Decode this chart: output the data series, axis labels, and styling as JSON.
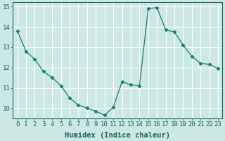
{
  "x": [
    0,
    1,
    2,
    3,
    4,
    5,
    6,
    7,
    8,
    9,
    10,
    11,
    12,
    13,
    14,
    15,
    16,
    17,
    18,
    19,
    20,
    21,
    22,
    23
  ],
  "y": [
    13.8,
    12.8,
    12.4,
    11.8,
    11.5,
    11.1,
    10.5,
    10.15,
    10.0,
    9.85,
    9.65,
    10.05,
    11.3,
    11.15,
    11.1,
    14.9,
    14.95,
    13.85,
    13.75,
    13.1,
    12.55,
    12.2,
    12.15,
    11.95
  ],
  "xlim": [
    -0.5,
    23.5
  ],
  "ylim": [
    9.5,
    15.2
  ],
  "yticks": [
    10,
    11,
    12,
    13,
    14,
    15
  ],
  "xticks": [
    0,
    1,
    2,
    3,
    4,
    5,
    6,
    7,
    8,
    9,
    10,
    11,
    12,
    13,
    14,
    15,
    16,
    17,
    18,
    19,
    20,
    21,
    22,
    23
  ],
  "xlabel": "Humidex (Indice chaleur)",
  "line_color": "#1a7a6e",
  "marker": "D",
  "marker_size": 2.5,
  "bg_plot": "#cce8e4",
  "bg_fig": "#cce8e4",
  "grid_color": "#e8c8c8",
  "grid_linecolor": "#ffffff",
  "tick_label_fontsize": 6.5,
  "xlabel_fontsize": 7.5
}
